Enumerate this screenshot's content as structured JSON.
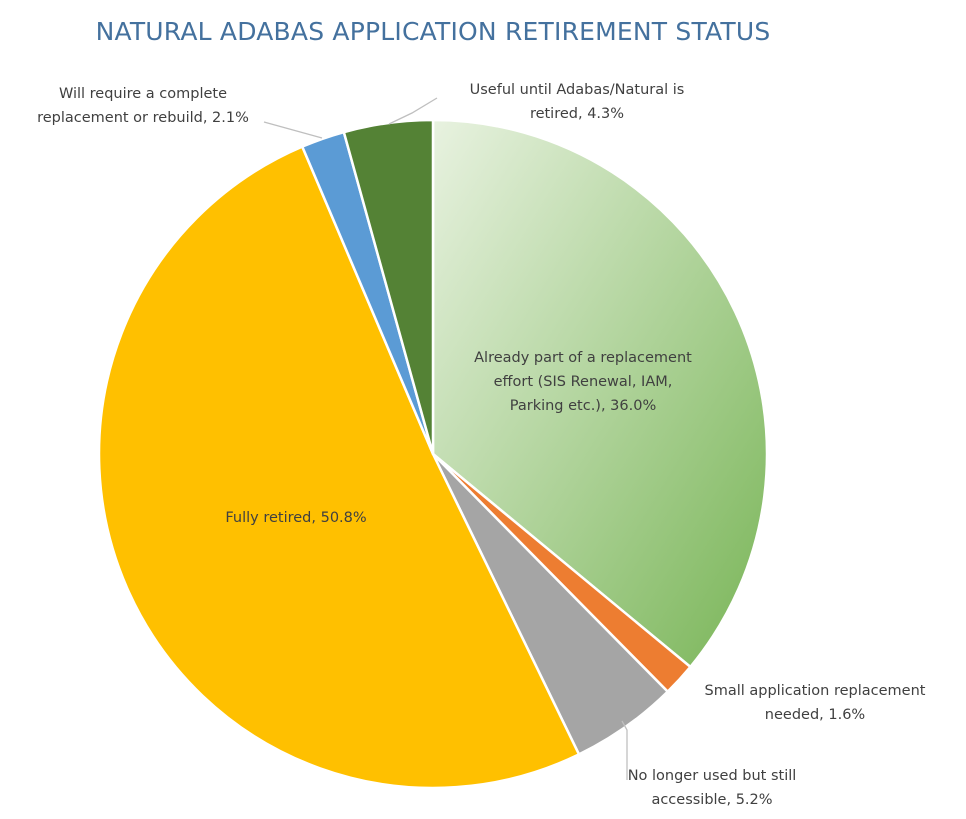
{
  "chart_data": {
    "type": "pie",
    "title": "NATURAL ADABAS APPLICATION RETIREMENT STATUS",
    "title_color": "#44719e",
    "label_color": "#404040",
    "slices": [
      {
        "label_lines": [
          "Already part of a replacement",
          "effort (SIS Renewal, IAM,",
          "Parking etc.),  36.0%"
        ],
        "value": 36.0,
        "color": "#8dc46b",
        "gradient": [
          "#e8f2e0",
          "#79b557"
        ]
      },
      {
        "label_lines": [
          "Small application replacement",
          "needed,  1.6%"
        ],
        "value": 1.6,
        "color": "#ed7d31"
      },
      {
        "label_lines": [
          "No longer used but still",
          "accessible,  5.2%"
        ],
        "value": 5.2,
        "color": "#a5a5a5"
      },
      {
        "label_lines": [
          "Fully retired,  50.8%"
        ],
        "value": 50.8,
        "color": "#ffc000"
      },
      {
        "label_lines": [
          "Will require a complete",
          "replacement or rebuild,  2.1%"
        ],
        "value": 2.1,
        "color": "#5b9bd5"
      },
      {
        "label_lines": [
          "Useful until Adabas/Natural is",
          "retired,  4.3%"
        ],
        "value": 4.3,
        "color": "#548235"
      }
    ],
    "start_angle": "12 o'clock",
    "direction": "clockwise",
    "legend": "none"
  }
}
